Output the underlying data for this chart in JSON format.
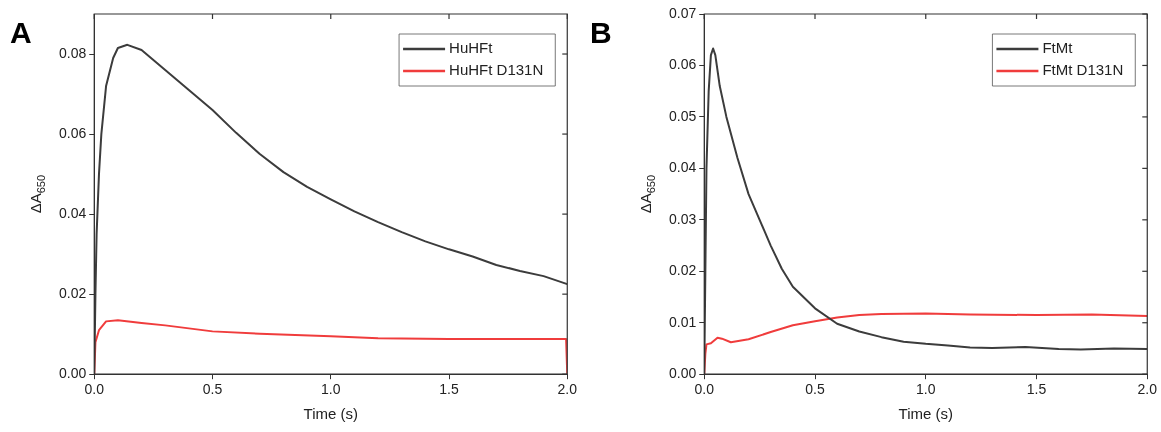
{
  "chart_data": [
    {
      "type": "line",
      "title": "A",
      "xlabel": "Time (s)",
      "ylabel": "ΔA$_{650}$",
      "xlim": [
        0,
        2
      ],
      "xticks": [
        {
          "value": 0,
          "label": "0.0"
        },
        {
          "value": 0.5,
          "label": "0.5"
        },
        {
          "value": 1,
          "label": "1.0"
        },
        {
          "value": 1.5,
          "label": "1.5"
        },
        {
          "value": 2,
          "label": "2.0"
        }
      ],
      "ylim": [
        0,
        0.09
      ],
      "yticks": [
        {
          "value": 0,
          "label": "0.00"
        },
        {
          "value": 0.02,
          "label": "0.02"
        },
        {
          "value": 0.04,
          "label": "0.04"
        },
        {
          "value": 0.06,
          "label": "0.06"
        },
        {
          "value": 0.08,
          "label": "0.08"
        }
      ],
      "legend": "top right",
      "grid": false,
      "marker": "none",
      "line_style": "solid",
      "series": [
        {
          "name": "HuHFt",
          "color": "#3c3c3c",
          "x": [
            0,
            0.005,
            0.01,
            0.02,
            0.03,
            0.05,
            0.08,
            0.1,
            0.14,
            0.2,
            0.3,
            0.4,
            0.5,
            0.6,
            0.7,
            0.8,
            0.9,
            1.0,
            1.1,
            1.2,
            1.3,
            1.4,
            1.5,
            1.6,
            1.7,
            1.8,
            1.9,
            2.0
          ],
          "values": [
            0,
            0.02,
            0.035,
            0.05,
            0.06,
            0.072,
            0.079,
            0.0815,
            0.0823,
            0.081,
            0.076,
            0.071,
            0.066,
            0.0603,
            0.055,
            0.0505,
            0.0468,
            0.0437,
            0.0407,
            0.038,
            0.0355,
            0.0332,
            0.0312,
            0.0294,
            0.0273,
            0.0258,
            0.0245,
            0.0225
          ]
        },
        {
          "name": "HuHFt D131N",
          "color": "#f03c3c",
          "x": [
            0,
            0.005,
            0.02,
            0.05,
            0.1,
            0.2,
            0.3,
            0.5,
            0.7,
            1.0,
            1.2,
            1.5,
            1.8,
            1.995,
            2.0
          ],
          "values": [
            0,
            0.008,
            0.011,
            0.0132,
            0.0135,
            0.0128,
            0.0122,
            0.0107,
            0.0101,
            0.0095,
            0.009,
            0.0088,
            0.0088,
            0.0088,
            0
          ]
        }
      ]
    },
    {
      "type": "line",
      "title": "B",
      "xlabel": "Time (s)",
      "ylabel": "ΔA$_{650}$",
      "xlim": [
        0,
        2
      ],
      "xticks": [
        {
          "value": 0,
          "label": "0.0"
        },
        {
          "value": 0.5,
          "label": "0.5"
        },
        {
          "value": 1,
          "label": "1.0"
        },
        {
          "value": 1.5,
          "label": "1.5"
        },
        {
          "value": 2,
          "label": "2.0"
        }
      ],
      "ylim": [
        0,
        0.07
      ],
      "yticks": [
        {
          "value": 0,
          "label": "0.00"
        },
        {
          "value": 0.01,
          "label": "0.01"
        },
        {
          "value": 0.02,
          "label": "0.02"
        },
        {
          "value": 0.03,
          "label": "0.03"
        },
        {
          "value": 0.04,
          "label": "0.04"
        },
        {
          "value": 0.05,
          "label": "0.05"
        },
        {
          "value": 0.06,
          "label": "0.06"
        },
        {
          "value": 0.07,
          "label": "0.07"
        }
      ],
      "legend": "top right",
      "grid": false,
      "marker": "none",
      "line_style": "solid",
      "series": [
        {
          "name": "FtMt",
          "color": "#3c3c3c",
          "x": [
            0,
            0.005,
            0.01,
            0.02,
            0.03,
            0.04,
            0.05,
            0.07,
            0.1,
            0.15,
            0.2,
            0.25,
            0.3,
            0.35,
            0.4,
            0.5,
            0.6,
            0.7,
            0.8,
            0.9,
            1.0,
            1.1,
            1.2,
            1.3,
            1.45,
            1.6,
            1.7,
            1.85,
            2.0
          ],
          "values": [
            0,
            0.02,
            0.04,
            0.055,
            0.062,
            0.0633,
            0.062,
            0.056,
            0.05,
            0.042,
            0.035,
            0.03,
            0.025,
            0.0205,
            0.017,
            0.0128,
            0.0098,
            0.0083,
            0.0072,
            0.0063,
            0.0059,
            0.0056,
            0.0052,
            0.0051,
            0.0053,
            0.0049,
            0.0048,
            0.005,
            0.0049
          ]
        },
        {
          "name": "FtMt D131N",
          "color": "#f03c3c",
          "x": [
            0,
            0.005,
            0.01,
            0.03,
            0.06,
            0.08,
            0.12,
            0.2,
            0.3,
            0.4,
            0.5,
            0.6,
            0.7,
            0.8,
            1.0,
            1.2,
            1.5,
            1.75,
            2.0
          ],
          "values": [
            0,
            0.004,
            0.0058,
            0.006,
            0.0071,
            0.0069,
            0.0062,
            0.0068,
            0.0082,
            0.0095,
            0.0103,
            0.011,
            0.0115,
            0.0117,
            0.0118,
            0.0116,
            0.0115,
            0.0116,
            0.0113
          ]
        }
      ]
    }
  ]
}
